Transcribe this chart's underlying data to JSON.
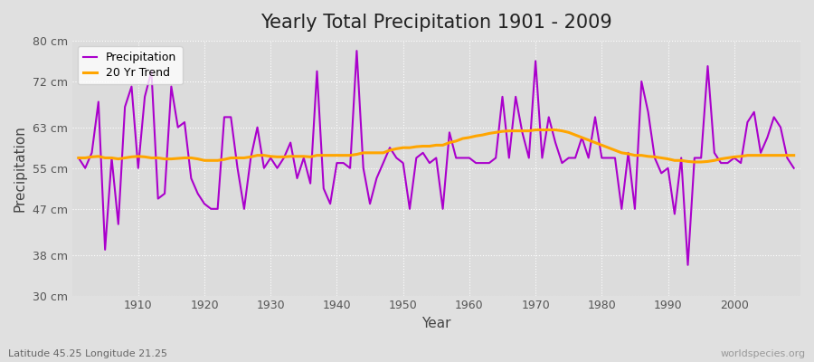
{
  "title": "Yearly Total Precipitation 1901 - 2009",
  "xlabel": "Year",
  "ylabel": "Precipitation",
  "subtitle": "Latitude 45.25 Longitude 21.25",
  "watermark": "worldspecies.org",
  "precip_color": "#aa00cc",
  "trend_color": "#FFA500",
  "bg_color": "#e0e0e0",
  "plot_bg_color": "#dcdcdc",
  "ylim": [
    30,
    80
  ],
  "yticks": [
    30,
    38,
    47,
    55,
    63,
    72,
    80
  ],
  "ytick_labels": [
    "30 cm",
    "38 cm",
    "47 cm",
    "55 cm",
    "63 cm",
    "72 cm",
    "80 cm"
  ],
  "years": [
    1901,
    1902,
    1903,
    1904,
    1905,
    1906,
    1907,
    1908,
    1909,
    1910,
    1911,
    1912,
    1913,
    1914,
    1915,
    1916,
    1917,
    1918,
    1919,
    1920,
    1921,
    1922,
    1923,
    1924,
    1925,
    1926,
    1927,
    1928,
    1929,
    1930,
    1931,
    1932,
    1933,
    1934,
    1935,
    1936,
    1937,
    1938,
    1939,
    1940,
    1941,
    1942,
    1943,
    1944,
    1945,
    1946,
    1947,
    1948,
    1949,
    1950,
    1951,
    1952,
    1953,
    1954,
    1955,
    1956,
    1957,
    1958,
    1959,
    1960,
    1961,
    1962,
    1963,
    1964,
    1965,
    1966,
    1967,
    1968,
    1969,
    1970,
    1971,
    1972,
    1973,
    1974,
    1975,
    1976,
    1977,
    1978,
    1979,
    1980,
    1981,
    1982,
    1983,
    1984,
    1985,
    1986,
    1987,
    1988,
    1989,
    1990,
    1991,
    1992,
    1993,
    1994,
    1995,
    1996,
    1997,
    1998,
    1999,
    2000,
    2001,
    2002,
    2003,
    2004,
    2005,
    2006,
    2007,
    2008,
    2009
  ],
  "precip": [
    57,
    55,
    58,
    68,
    39,
    57,
    44,
    67,
    71,
    55,
    69,
    74,
    49,
    50,
    71,
    63,
    64,
    53,
    50,
    48,
    47,
    47,
    65,
    65,
    55,
    47,
    57,
    63,
    55,
    57,
    55,
    57,
    60,
    53,
    57,
    52,
    74,
    51,
    48,
    56,
    56,
    55,
    78,
    55,
    48,
    53,
    56,
    59,
    57,
    56,
    47,
    57,
    58,
    56,
    57,
    47,
    62,
    57,
    57,
    57,
    56,
    56,
    56,
    57,
    69,
    57,
    69,
    62,
    57,
    76,
    57,
    65,
    60,
    56,
    57,
    57,
    61,
    57,
    65,
    57,
    57,
    57,
    47,
    58,
    47,
    72,
    66,
    57,
    54,
    55,
    46,
    57,
    36,
    57,
    57,
    75,
    58,
    56,
    56,
    57,
    56,
    64,
    66,
    58,
    61,
    65,
    63,
    57,
    55
  ],
  "trend": [
    57.0,
    57.0,
    57.2,
    57.3,
    57.0,
    57.0,
    56.8,
    57.0,
    57.2,
    57.3,
    57.2,
    57.0,
    57.0,
    56.8,
    56.8,
    56.9,
    57.0,
    57.0,
    56.8,
    56.5,
    56.5,
    56.5,
    56.7,
    57.0,
    57.0,
    57.0,
    57.2,
    57.5,
    57.5,
    57.3,
    57.2,
    57.2,
    57.3,
    57.3,
    57.3,
    57.2,
    57.5,
    57.5,
    57.5,
    57.5,
    57.5,
    57.5,
    57.7,
    58.0,
    58.0,
    58.0,
    58.0,
    58.5,
    58.8,
    59.0,
    59.0,
    59.2,
    59.3,
    59.3,
    59.5,
    59.5,
    60.0,
    60.3,
    60.8,
    61.0,
    61.3,
    61.5,
    61.8,
    62.0,
    62.2,
    62.3,
    62.3,
    62.3,
    62.3,
    62.5,
    62.5,
    62.5,
    62.5,
    62.3,
    62.0,
    61.5,
    61.0,
    60.5,
    60.0,
    59.5,
    59.0,
    58.5,
    58.0,
    57.8,
    57.5,
    57.5,
    57.3,
    57.2,
    57.0,
    56.8,
    56.5,
    56.5,
    56.3,
    56.2,
    56.2,
    56.3,
    56.5,
    56.8,
    57.0,
    57.2,
    57.3,
    57.5,
    57.5,
    57.5,
    57.5,
    57.5,
    57.5,
    57.5,
    57.5
  ]
}
